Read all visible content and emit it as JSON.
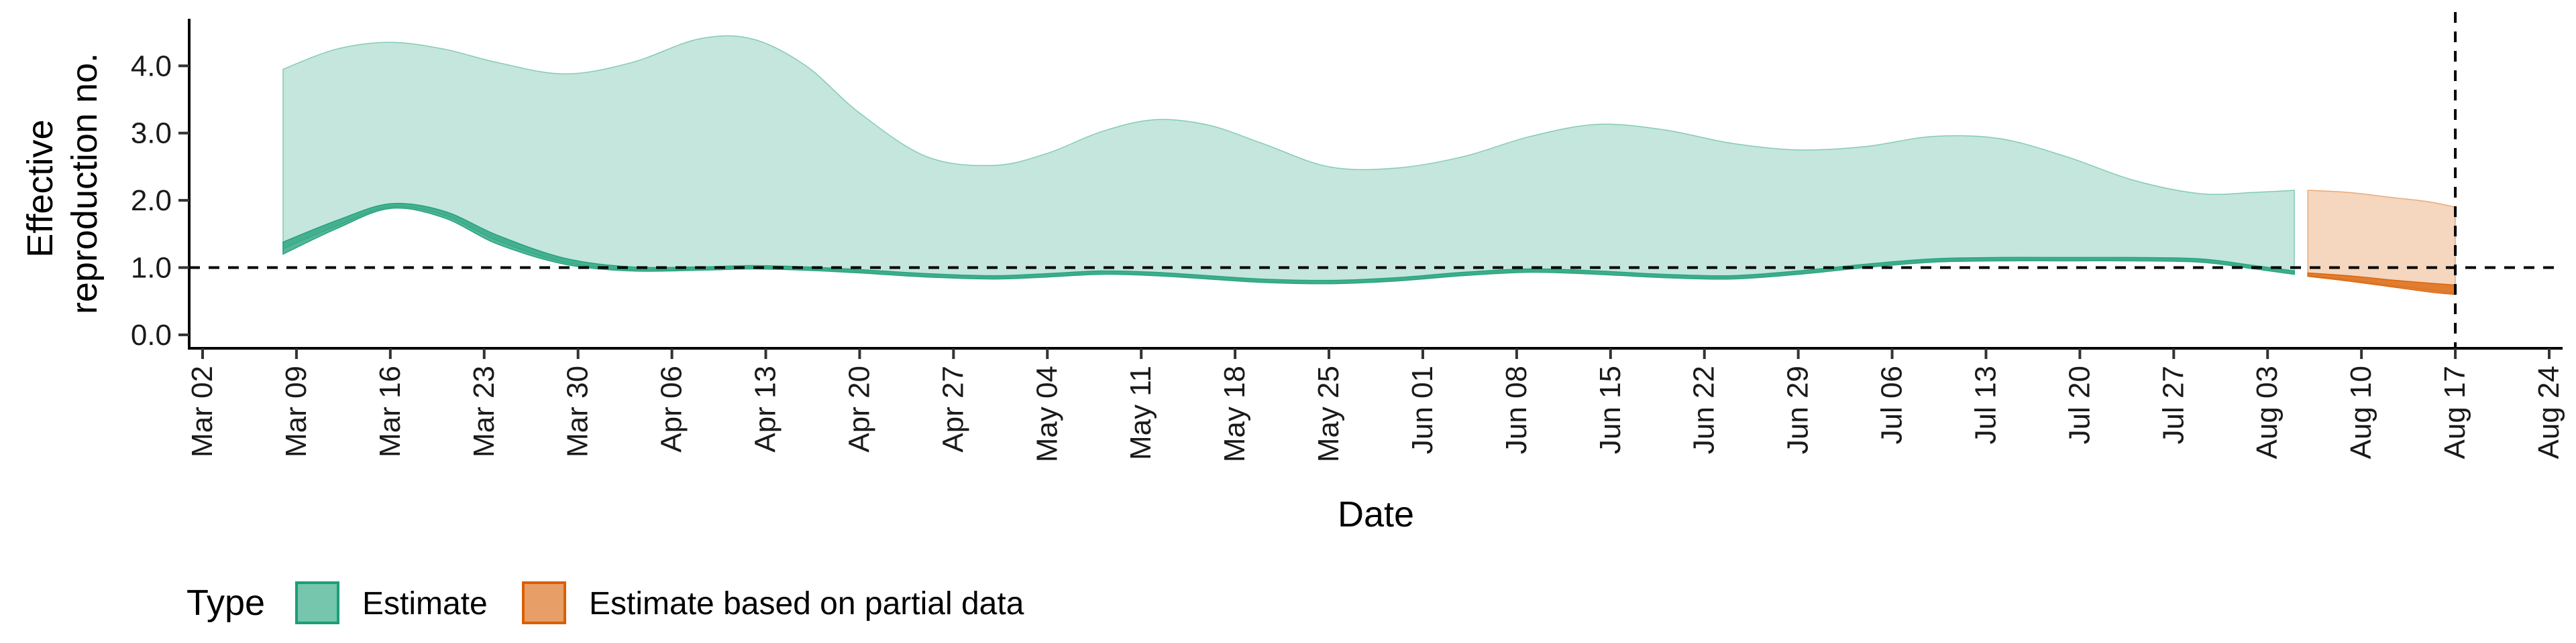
{
  "chart_data": {
    "type": "area",
    "xlabel": "Date",
    "ylabel": "Effective reproduction no.",
    "ylabel_lines": [
      "Effective",
      "reproduction no."
    ],
    "x_ticks": [
      "2020-03-02",
      "2020-03-09",
      "2020-03-16",
      "2020-03-23",
      "2020-03-30",
      "2020-04-06",
      "2020-04-13",
      "2020-04-20",
      "2020-04-27",
      "2020-05-04",
      "2020-05-11",
      "2020-05-18",
      "2020-05-25",
      "2020-06-01",
      "2020-06-08",
      "2020-06-15",
      "2020-06-22",
      "2020-06-29",
      "2020-07-06",
      "2020-07-13",
      "2020-07-20",
      "2020-07-27",
      "2020-08-03",
      "2020-08-10",
      "2020-08-17",
      "2020-08-24"
    ],
    "x_tick_labels": [
      "Mar 02",
      "Mar 09",
      "Mar 16",
      "Mar 23",
      "Mar 30",
      "Apr 06",
      "Apr 13",
      "Apr 20",
      "Apr 27",
      "May 04",
      "May 11",
      "May 18",
      "May 25",
      "Jun 01",
      "Jun 08",
      "Jun 15",
      "Jun 22",
      "Jun 29",
      "Jul 06",
      "Jul 13",
      "Jul 20",
      "Jul 27",
      "Aug 03",
      "Aug 10",
      "Aug 17",
      "Aug 24"
    ],
    "xlim": [
      "2020-03-01",
      "2020-08-25"
    ],
    "y_ticks": [
      0,
      1,
      2,
      3,
      4
    ],
    "y_tick_labels": [
      "0.0",
      "1.0",
      "2.0",
      "3.0",
      "4.0"
    ],
    "ylim": [
      -0.2,
      4.7
    ],
    "reference_lines": {
      "horizontal_y": 1.0,
      "vertical_x": "2020-08-17"
    },
    "legend": {
      "title": "Type",
      "position": "bottom",
      "items": [
        {
          "label": "Estimate",
          "color": "#1b9e77"
        },
        {
          "label": "Estimate based on partial data",
          "color": "#d95f02"
        }
      ]
    },
    "series": [
      {
        "name": "Estimate",
        "color": "#1b9e77",
        "outer_band": {
          "x": [
            "2020-03-08",
            "2020-03-12",
            "2020-03-16",
            "2020-03-20",
            "2020-03-24",
            "2020-03-29",
            "2020-04-03",
            "2020-04-08",
            "2020-04-12",
            "2020-04-16",
            "2020-04-20",
            "2020-04-25",
            "2020-04-30",
            "2020-05-04",
            "2020-05-08",
            "2020-05-12",
            "2020-05-16",
            "2020-05-20",
            "2020-05-25",
            "2020-05-30",
            "2020-06-04",
            "2020-06-09",
            "2020-06-14",
            "2020-06-19",
            "2020-06-24",
            "2020-06-29",
            "2020-07-04",
            "2020-07-09",
            "2020-07-14",
            "2020-07-19",
            "2020-07-24",
            "2020-07-29",
            "2020-08-02",
            "2020-08-05"
          ],
          "upper": [
            3.95,
            4.25,
            4.35,
            4.25,
            4.05,
            3.88,
            4.05,
            4.4,
            4.4,
            4.0,
            3.3,
            2.65,
            2.52,
            2.7,
            3.02,
            3.2,
            3.12,
            2.85,
            2.5,
            2.48,
            2.65,
            2.95,
            3.13,
            3.05,
            2.85,
            2.75,
            2.8,
            2.95,
            2.92,
            2.65,
            2.3,
            2.1,
            2.12,
            2.15
          ],
          "lower": [
            1.28,
            1.62,
            1.9,
            1.78,
            1.4,
            1.08,
            0.97,
            0.98,
            1.0,
            0.98,
            0.94,
            0.88,
            0.85,
            0.88,
            0.92,
            0.9,
            0.85,
            0.8,
            0.78,
            0.82,
            0.9,
            0.95,
            0.92,
            0.87,
            0.85,
            0.92,
            1.02,
            1.1,
            1.12,
            1.12,
            1.12,
            1.1,
            1.0,
            0.92
          ]
        },
        "inner_band": {
          "x": [
            "2020-03-08",
            "2020-03-12",
            "2020-03-16",
            "2020-03-20",
            "2020-03-24",
            "2020-03-29",
            "2020-04-03",
            "2020-04-08",
            "2020-04-12",
            "2020-04-16",
            "2020-04-20",
            "2020-04-25",
            "2020-04-30",
            "2020-05-04",
            "2020-05-08",
            "2020-05-12",
            "2020-05-16",
            "2020-05-20",
            "2020-05-25",
            "2020-05-30",
            "2020-06-04",
            "2020-06-09",
            "2020-06-14",
            "2020-06-19",
            "2020-06-24",
            "2020-06-29",
            "2020-07-04",
            "2020-07-09",
            "2020-07-14",
            "2020-07-19",
            "2020-07-24",
            "2020-07-29",
            "2020-08-02",
            "2020-08-05"
          ],
          "upper": [
            1.38,
            1.7,
            1.95,
            1.84,
            1.48,
            1.14,
            1.01,
            1.01,
            1.03,
            1.01,
            0.97,
            0.91,
            0.88,
            0.91,
            0.95,
            0.93,
            0.88,
            0.83,
            0.81,
            0.85,
            0.93,
            0.98,
            0.95,
            0.9,
            0.88,
            0.95,
            1.05,
            1.13,
            1.15,
            1.15,
            1.15,
            1.13,
            1.03,
            0.95
          ],
          "lower": [
            1.2,
            1.58,
            1.88,
            1.74,
            1.35,
            1.05,
            0.95,
            0.96,
            0.98,
            0.96,
            0.92,
            0.86,
            0.83,
            0.86,
            0.9,
            0.88,
            0.83,
            0.78,
            0.76,
            0.8,
            0.88,
            0.93,
            0.9,
            0.85,
            0.83,
            0.9,
            1.0,
            1.08,
            1.1,
            1.1,
            1.1,
            1.08,
            0.98,
            0.9
          ]
        }
      },
      {
        "name": "Estimate based on partial data",
        "color": "#d95f02",
        "outer_band": {
          "x": [
            "2020-08-06",
            "2020-08-09",
            "2020-08-12",
            "2020-08-15",
            "2020-08-17"
          ],
          "upper": [
            2.15,
            2.12,
            2.05,
            1.98,
            1.9
          ],
          "lower": [
            0.88,
            0.82,
            0.74,
            0.67,
            0.62
          ]
        },
        "inner_band": {
          "x": [
            "2020-08-06",
            "2020-08-09",
            "2020-08-12",
            "2020-08-15",
            "2020-08-17"
          ],
          "upper": [
            0.92,
            0.88,
            0.82,
            0.77,
            0.74
          ],
          "lower": [
            0.87,
            0.8,
            0.72,
            0.64,
            0.6
          ]
        }
      }
    ]
  }
}
